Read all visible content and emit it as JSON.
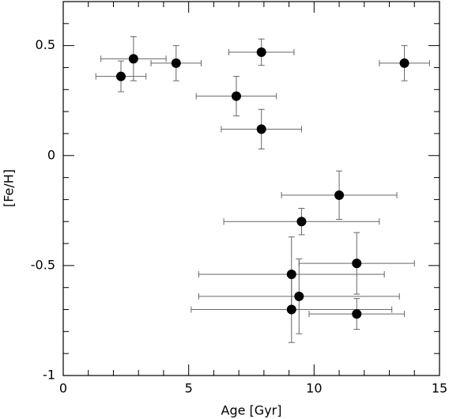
{
  "chart_data": {
    "type": "scatter",
    "xlabel": "Age [Gyr]",
    "ylabel": "[Fe/H]",
    "xlim": [
      0,
      15
    ],
    "ylim": [
      -1,
      0.7
    ],
    "xticks": [
      0,
      5,
      10,
      15
    ],
    "yticks": [
      -1,
      -0.5,
      0,
      0.5
    ],
    "x_minor_ticks": [
      1,
      2,
      3,
      4,
      6,
      7,
      8,
      9,
      11,
      12,
      13,
      14
    ],
    "y_minor_ticks": [
      -0.9,
      -0.8,
      -0.7,
      -0.6,
      -0.4,
      -0.3,
      -0.2,
      -0.1,
      0.1,
      0.2,
      0.3,
      0.4,
      0.6
    ],
    "series": [
      {
        "color": "#000000",
        "x": [
          2.3,
          2.8,
          4.5,
          7.9,
          13.6,
          6.9,
          7.9,
          11.0,
          9.5,
          11.7,
          9.1,
          9.4,
          9.1,
          11.7
        ],
        "values": [
          0.36,
          0.44,
          0.42,
          0.47,
          0.42,
          0.27,
          0.12,
          -0.18,
          -0.3,
          -0.49,
          -0.54,
          -0.64,
          -0.7,
          -0.72
        ],
        "xerr": [
          1.0,
          1.3,
          1.0,
          1.3,
          1.0,
          1.6,
          1.6,
          2.3,
          3.1,
          2.3,
          3.7,
          4.0,
          4.0,
          1.9
        ],
        "yerr": [
          0.07,
          0.1,
          0.08,
          0.06,
          0.08,
          0.09,
          0.09,
          0.11,
          0.06,
          0.14,
          0.17,
          0.17,
          0.15,
          0.07
        ]
      }
    ]
  }
}
